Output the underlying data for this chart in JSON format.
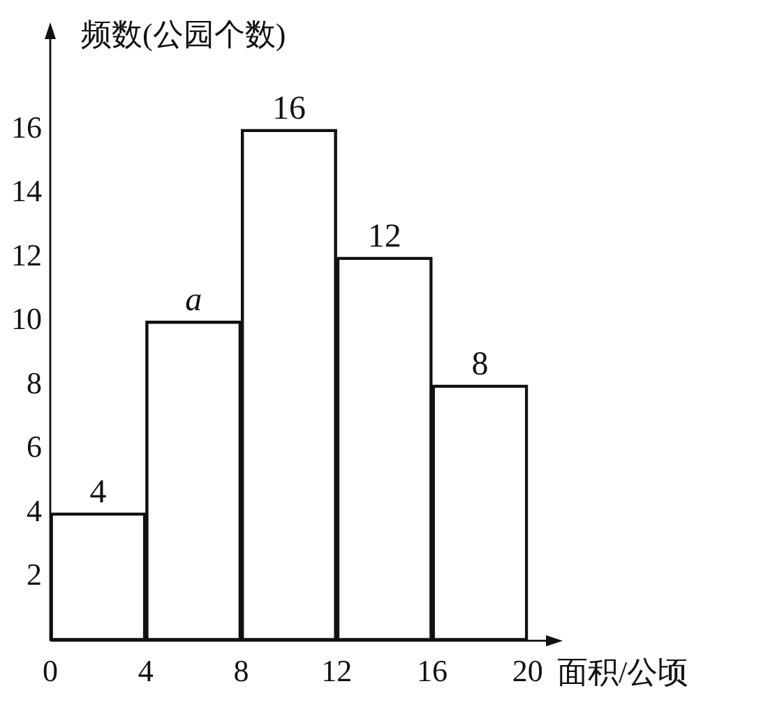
{
  "chart_data": {
    "type": "histogram",
    "xlabel": "面积/公顷",
    "ylabel": "频数(公园个数)",
    "bins": [
      0,
      4,
      8,
      12,
      16,
      20
    ],
    "values": [
      4,
      10,
      16,
      12,
      8
    ],
    "value_labels": [
      "4",
      "a",
      "16",
      "12",
      "8"
    ],
    "color": "#111111",
    "xlim": [
      0,
      21
    ],
    "xticks": [
      0,
      4,
      8,
      12,
      16,
      20
    ],
    "ylim": [
      0,
      19
    ],
    "yticks": [
      2,
      4,
      6,
      8,
      10,
      12,
      14,
      16
    ],
    "grid": false,
    "legend": false
  }
}
